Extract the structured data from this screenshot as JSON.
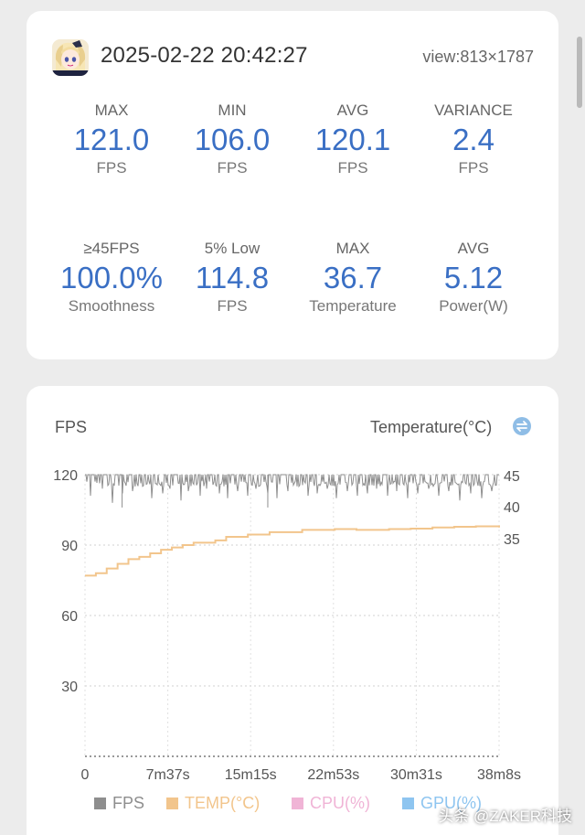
{
  "header": {
    "timestamp": "2025-02-22 20:42:27",
    "view": "view:813×1787"
  },
  "stats": [
    {
      "label": "MAX",
      "value": "121.0",
      "unit": "FPS"
    },
    {
      "label": "MIN",
      "value": "106.0",
      "unit": "FPS"
    },
    {
      "label": "AVG",
      "value": "120.1",
      "unit": "FPS"
    },
    {
      "label": "VARIANCE",
      "value": "2.4",
      "unit": "FPS"
    },
    {
      "label": "≥45FPS",
      "value": "100.0%",
      "unit": "Smoothness"
    },
    {
      "label": "5% Low",
      "value": "114.8",
      "unit": "FPS"
    },
    {
      "label": "MAX",
      "value": "36.7",
      "unit": "Temperature"
    },
    {
      "label": "AVG",
      "value": "5.12",
      "unit": "Power(W)"
    }
  ],
  "chart": {
    "left_title": "FPS",
    "right_title": "Temperature(°C)",
    "legend": [
      {
        "name": "FPS",
        "color": "#8e8e8e"
      },
      {
        "name": "TEMP(°C)",
        "color": "#f2c58c"
      },
      {
        "name": "CPU(%)",
        "color": "#f0b4d6"
      },
      {
        "name": "GPU(%)",
        "color": "#8ec5f0"
      }
    ]
  },
  "chart_data": {
    "type": "line",
    "x_ticks": [
      "0",
      "7m37s",
      "15m15s",
      "22m53s",
      "30m31s",
      "38m8s"
    ],
    "x_range_seconds": [
      0,
      2288
    ],
    "y_left": {
      "label": "FPS",
      "ticks": [
        30,
        60,
        90,
        120
      ],
      "range": [
        0,
        120
      ]
    },
    "y_right": {
      "label": "Temperature(°C)",
      "ticks": [
        35,
        40,
        45
      ]
    },
    "series": [
      {
        "name": "FPS",
        "baseline": 120,
        "min": 106,
        "dips_seconds": [
          28,
          95,
          150,
          205,
          262,
          318,
          370,
          428,
          470,
          528,
          572,
          635,
          672,
          740,
          790,
          845,
          900,
          945,
          1010,
          1062,
          1120,
          1180,
          1230,
          1285,
          1340,
          1390,
          1452,
          1505,
          1560,
          1610,
          1672,
          1720,
          1785,
          1840,
          1900,
          1955,
          2010,
          2070,
          2130,
          2190,
          2250
        ],
        "dips_values": [
          111,
          114,
          108,
          112,
          113,
          115,
          110,
          112,
          114,
          109,
          113,
          111,
          114,
          112,
          110,
          113,
          111,
          114,
          112,
          110,
          113,
          115,
          111,
          112,
          114,
          110,
          113,
          111,
          112,
          114,
          111,
          113,
          110,
          112,
          114,
          111,
          113,
          109,
          112,
          110,
          113
        ]
      },
      {
        "name": "TEMP(°C)",
        "x_seconds": [
          0,
          60,
          120,
          180,
          240,
          300,
          360,
          420,
          480,
          540,
          600,
          720,
          780,
          900,
          1020,
          1200,
          1380,
          1500,
          1680,
          1800,
          1920,
          2040,
          2160,
          2288
        ],
        "values": [
          77,
          78,
          80,
          82,
          84,
          85,
          86.5,
          88,
          89,
          90,
          91,
          92,
          93.5,
          94.5,
          95.5,
          96.5,
          96.8,
          96.5,
          96.8,
          97,
          97.5,
          97.8,
          98,
          97.5
        ]
      }
    ]
  }
}
